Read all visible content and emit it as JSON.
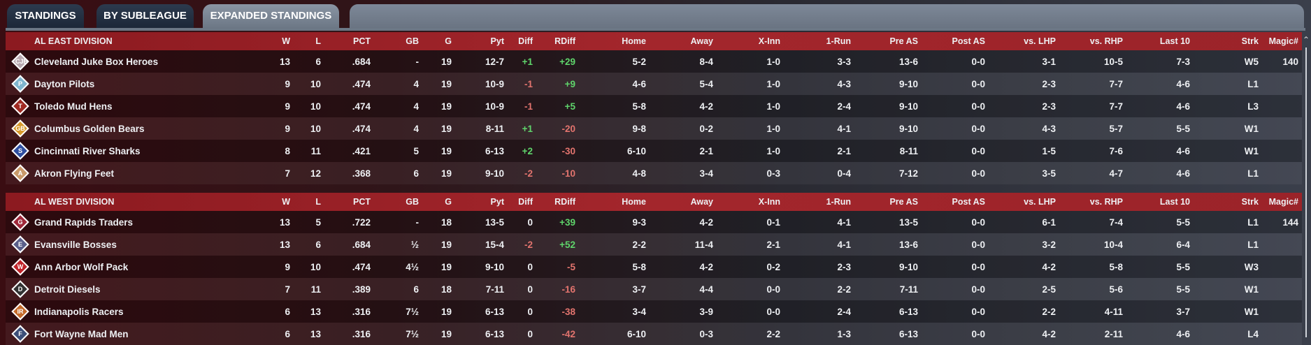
{
  "tabs": [
    {
      "label": "STANDINGS"
    },
    {
      "label": "BY SUBLEAGUE"
    },
    {
      "label": "EXPANDED STANDINGS"
    }
  ],
  "columns": [
    "W",
    "L",
    "PCT",
    "GB",
    "G",
    "Pyt",
    "Diff",
    "RDiff",
    "Home",
    "Away",
    "X-Inn",
    "1-Run",
    "Pre AS",
    "Post AS",
    "vs. LHP",
    "vs. RHP",
    "Last 10",
    "Strk",
    "Magic#"
  ],
  "colors": {
    "positive": "#5fd46b",
    "negative": "#e3746e",
    "header": "#a3262c"
  },
  "divisions": [
    {
      "name": "AL EAST DIVISION",
      "teams": [
        {
          "name": "Cleveland Juke Box Heroes",
          "logo": "CJB",
          "logo_color": "#b8a9b0",
          "stats": [
            "13",
            "6",
            ".684",
            "-",
            "19",
            "12-7",
            "+1",
            "+29",
            "5-2",
            "8-4",
            "1-0",
            "3-3",
            "13-6",
            "0-0",
            "3-1",
            "10-5",
            "7-3",
            "W5",
            "140"
          ]
        },
        {
          "name": "Dayton Pilots",
          "logo": "P",
          "logo_color": "#7fb6cf",
          "stats": [
            "9",
            "10",
            ".474",
            "4",
            "19",
            "10-9",
            "-1",
            "+9",
            "4-6",
            "5-4",
            "1-0",
            "4-3",
            "9-10",
            "0-0",
            "2-3",
            "7-7",
            "4-6",
            "L1",
            ""
          ]
        },
        {
          "name": "Toledo  Mud Hens",
          "logo": "T",
          "logo_color": "#a02a22",
          "stats": [
            "9",
            "10",
            ".474",
            "4",
            "19",
            "10-9",
            "-1",
            "+5",
            "5-8",
            "4-2",
            "1-0",
            "2-4",
            "9-10",
            "0-0",
            "2-3",
            "7-7",
            "4-6",
            "L3",
            ""
          ]
        },
        {
          "name": "Columbus Golden Bears",
          "logo": "GB",
          "logo_color": "#d89a2c",
          "stats": [
            "9",
            "10",
            ".474",
            "4",
            "19",
            "8-11",
            "+1",
            "-20",
            "9-8",
            "0-2",
            "1-0",
            "4-1",
            "9-10",
            "0-0",
            "4-3",
            "5-7",
            "5-5",
            "W1",
            ""
          ]
        },
        {
          "name": "Cincinnati River Sharks",
          "logo": "S",
          "logo_color": "#2f4fa0",
          "stats": [
            "8",
            "11",
            ".421",
            "5",
            "19",
            "6-13",
            "+2",
            "-30",
            "6-10",
            "2-1",
            "1-0",
            "2-1",
            "8-11",
            "0-0",
            "1-5",
            "7-6",
            "4-6",
            "W1",
            ""
          ]
        },
        {
          "name": "Akron  Flying Feet",
          "logo": "A",
          "logo_color": "#c99a6a",
          "stats": [
            "7",
            "12",
            ".368",
            "6",
            "19",
            "9-10",
            "-2",
            "-10",
            "4-8",
            "3-4",
            "0-3",
            "0-4",
            "7-12",
            "0-0",
            "3-5",
            "4-7",
            "4-6",
            "L1",
            ""
          ]
        }
      ]
    },
    {
      "name": "AL WEST DIVISION",
      "teams": [
        {
          "name": "Grand Rapids Traders",
          "logo": "G",
          "logo_color": "#a0283a",
          "stats": [
            "13",
            "5",
            ".722",
            "-",
            "18",
            "13-5",
            "0",
            "+39",
            "9-3",
            "4-2",
            "0-1",
            "4-1",
            "13-5",
            "0-0",
            "6-1",
            "7-4",
            "5-5",
            "L1",
            "144"
          ]
        },
        {
          "name": "Evansville Bosses",
          "logo": "E",
          "logo_color": "#5a5f8a",
          "stats": [
            "13",
            "6",
            ".684",
            "½",
            "19",
            "15-4",
            "-2",
            "+52",
            "2-2",
            "11-4",
            "2-1",
            "4-1",
            "13-6",
            "0-0",
            "3-2",
            "10-4",
            "6-4",
            "L1",
            ""
          ]
        },
        {
          "name": "Ann Arbor Wolf Pack",
          "logo": "W",
          "logo_color": "#c0242a",
          "stats": [
            "9",
            "10",
            ".474",
            "4½",
            "19",
            "9-10",
            "0",
            "-5",
            "5-8",
            "4-2",
            "0-2",
            "2-3",
            "9-10",
            "0-0",
            "4-2",
            "5-8",
            "5-5",
            "W3",
            ""
          ]
        },
        {
          "name": "Detroit Diesels",
          "logo": "D",
          "logo_color": "#333333",
          "stats": [
            "7",
            "11",
            ".389",
            "6",
            "18",
            "7-11",
            "0",
            "-16",
            "3-7",
            "4-4",
            "0-0",
            "2-2",
            "7-11",
            "0-0",
            "2-5",
            "5-6",
            "5-5",
            "W1",
            ""
          ]
        },
        {
          "name": "Indianapolis Racers",
          "logo": "IR",
          "logo_color": "#c46a2a",
          "stats": [
            "6",
            "13",
            ".316",
            "7½",
            "19",
            "6-13",
            "0",
            "-38",
            "3-4",
            "3-9",
            "0-0",
            "2-4",
            "6-13",
            "0-0",
            "2-2",
            "4-11",
            "3-7",
            "W1",
            ""
          ]
        },
        {
          "name": "Fort Wayne Mad Men",
          "logo": "F",
          "logo_color": "#3c4f7a",
          "stats": [
            "6",
            "13",
            ".316",
            "7½",
            "19",
            "6-13",
            "0",
            "-42",
            "6-10",
            "0-3",
            "2-2",
            "1-3",
            "6-13",
            "0-0",
            "4-2",
            "2-11",
            "4-6",
            "L4",
            ""
          ]
        }
      ]
    }
  ]
}
